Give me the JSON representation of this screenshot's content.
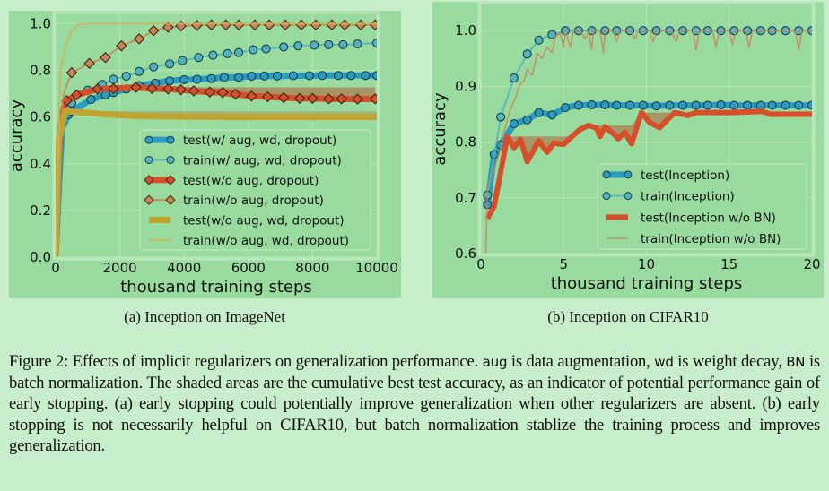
{
  "colors": {
    "page_background": "#c8edca",
    "panel_background": "#99db9f",
    "grid": "#b7e4b7",
    "shade": "#a98a5c"
  },
  "figure": {
    "subcaption_a": "(a) Inception on ImageNet",
    "subcaption_b": "(b) Inception on CIFAR10",
    "caption": {
      "label": "Figure 2:",
      "t1": "Effects of implicit regularizers on generalization performance.",
      "c1": "aug",
      "t2": "is data augmentation,",
      "c2": "wd",
      "t3": "is weight decay,",
      "c3": "BN",
      "t4": "is batch normalization.  The shaded areas are the cumulative best test accuracy, as an indicator of potential performance gain of early stopping.  (a) early stopping could potentially improve generalization when other regularizers are absent. (b) early stopping is not necessarily helpful on CIFAR10, but batch normalization stablize the training process and improves generalization."
    }
  },
  "chart_data": [
    {
      "type": "line",
      "xlabel": "thousand training steps",
      "ylabel": "accuracy",
      "xlim": [
        0,
        10000
      ],
      "ylim": [
        0,
        1.04
      ],
      "xticks": [
        0,
        2000,
        4000,
        6000,
        8000,
        10000
      ],
      "yticks": [
        0.0,
        0.2,
        0.4,
        0.6,
        0.8,
        1.0
      ],
      "grid": true,
      "legend_position": "lower-right",
      "series": [
        {
          "name": "test(w/ aug, wd, dropout)",
          "color": "#2b9bbf",
          "width": 7,
          "marker": "circle",
          "x": [
            0,
            100,
            200,
            400,
            500,
            1100,
            1550,
            1800,
            2200,
            2600,
            3100,
            3550,
            4000,
            4400,
            4850,
            5250,
            5700,
            6100,
            6500,
            6900,
            7400,
            7900,
            8300,
            8800,
            9200,
            9650,
            10000
          ],
          "y": [
            0,
            0.3,
            0.55,
            0.61,
            0.625,
            0.675,
            0.695,
            0.705,
            0.72,
            0.735,
            0.745,
            0.755,
            0.76,
            0.762,
            0.765,
            0.77,
            0.77,
            0.775,
            0.776,
            0.776,
            0.777,
            0.777,
            0.778,
            0.778,
            0.778,
            0.778,
            0.778
          ]
        },
        {
          "name": "train(w/ aug, wd, dropout)",
          "color": "#52b3bf",
          "width": 2,
          "marker": "circle",
          "x": [
            0,
            100,
            250,
            500,
            1000,
            1450,
            1800,
            2200,
            2600,
            3050,
            3550,
            3950,
            4450,
            4900,
            5350,
            5700,
            6150,
            6550,
            7100,
            7550,
            8050,
            8500,
            8950,
            9400,
            10000
          ],
          "y": [
            0,
            0.4,
            0.6,
            0.66,
            0.715,
            0.74,
            0.762,
            0.775,
            0.795,
            0.815,
            0.828,
            0.842,
            0.855,
            0.865,
            0.872,
            0.876,
            0.888,
            0.892,
            0.9,
            0.905,
            0.908,
            0.91,
            0.91,
            0.913,
            0.917
          ]
        },
        {
          "name": "test(w/o aug, dropout)",
          "color": "#d64f2a",
          "width": 7,
          "marker": "diamond",
          "shaded": true,
          "x": [
            0,
            100,
            200,
            350,
            650,
            1300,
            1800,
            2500,
            3000,
            3500,
            3900,
            4300,
            4800,
            5200,
            5600,
            6100,
            6600,
            7100,
            7600,
            8000,
            8500,
            8900,
            9400,
            9950
          ],
          "y": [
            0,
            0.45,
            0.62,
            0.67,
            0.695,
            0.72,
            0.722,
            0.727,
            0.722,
            0.72,
            0.717,
            0.712,
            0.707,
            0.705,
            0.698,
            0.69,
            0.687,
            0.683,
            0.68,
            0.68,
            0.678,
            0.678,
            0.677,
            0.678
          ]
        },
        {
          "name": "train(w/o aug, dropout)",
          "color": "#c98457",
          "width": 2,
          "marker": "diamond",
          "x": [
            0,
            100,
            250,
            500,
            1050,
            1550,
            2050,
            2600,
            3050,
            3500,
            3900,
            4400,
            4850,
            5300,
            5700,
            6200,
            6650,
            7150,
            7650,
            8100,
            8600,
            9000,
            9500,
            9950
          ],
          "y": [
            0,
            0.5,
            0.7,
            0.79,
            0.83,
            0.855,
            0.905,
            0.935,
            0.97,
            0.985,
            0.99,
            0.993,
            0.995,
            0.995,
            0.995,
            0.995,
            0.995,
            0.995,
            0.995,
            0.995,
            0.995,
            0.995,
            0.995,
            0.995
          ]
        },
        {
          "name": "test(w/o aug, wd, dropout)",
          "color": "#bfa42f",
          "width": 7,
          "marker": "none",
          "shaded": true,
          "x": [
            0,
            100,
            300,
            800,
            1500,
            2500,
            4000,
            6000,
            10000
          ],
          "y": [
            0,
            0.5,
            0.625,
            0.62,
            0.612,
            0.605,
            0.602,
            0.6,
            0.6
          ]
        },
        {
          "name": "train(w/o aug, wd, dropout)",
          "color": "#c9b45a",
          "width": 2,
          "marker": "none",
          "x": [
            0,
            150,
            300,
            500,
            700,
            1000,
            10000
          ],
          "y": [
            0,
            0.8,
            0.9,
            0.97,
            0.995,
            1.0,
            1.0
          ]
        }
      ]
    },
    {
      "type": "line",
      "xlabel": "thousand training steps",
      "ylabel": "accuracy",
      "xlim": [
        0,
        20
      ],
      "ylim": [
        0.6,
        1.047
      ],
      "xticks": [
        0,
        5,
        10,
        15,
        20
      ],
      "yticks": [
        0.6,
        0.7,
        0.8,
        0.9,
        1.0
      ],
      "grid": true,
      "legend_position": "lower-right",
      "series": [
        {
          "name": "test(Inception)",
          "color": "#2b9bbf",
          "width": 7,
          "marker": "circle",
          "x": [
            0.4,
            0.8,
            1.2,
            2,
            2.8,
            3.5,
            4.3,
            5.1,
            5.9,
            6.7,
            7.5,
            8.2,
            9,
            9.8,
            10.6,
            11.4,
            12.2,
            13,
            13.7,
            14.5,
            15.3,
            16.1,
            16.9,
            17.6,
            18.4,
            19.2,
            20
          ],
          "y": [
            0.688,
            0.778,
            0.795,
            0.833,
            0.84,
            0.853,
            0.849,
            0.862,
            0.866,
            0.867,
            0.867,
            0.866,
            0.866,
            0.866,
            0.865,
            0.866,
            0.866,
            0.866,
            0.866,
            0.867,
            0.866,
            0.866,
            0.866,
            0.866,
            0.866,
            0.866,
            0.866
          ]
        },
        {
          "name": "train(Inception)",
          "color": "#52b3bf",
          "width": 2,
          "marker": "circle",
          "x": [
            0.4,
            1.2,
            2,
            2.8,
            3.5,
            4.3,
            5.1,
            5.9,
            6.7,
            7.5,
            8.2,
            9,
            9.8,
            10.6,
            11.4,
            12.2,
            13,
            13.7,
            14.5,
            15.3,
            16.1,
            16.9,
            17.6,
            18.4,
            19.2,
            20
          ],
          "y": [
            0.705,
            0.845,
            0.915,
            0.958,
            0.983,
            0.993,
            1,
            1,
            1,
            1,
            1,
            1,
            1,
            1,
            1,
            1,
            1,
            1,
            1,
            1,
            1,
            1,
            1,
            1,
            1,
            1
          ]
        },
        {
          "name": "test(Inception w/o BN)",
          "color": "#d64f2a",
          "width": 6,
          "marker": "none",
          "shaded": true,
          "x": [
            0.4,
            0.8,
            1.6,
            2,
            2.4,
            2.8,
            3.5,
            4,
            4.4,
            5,
            5.5,
            6,
            6.5,
            7,
            7.2,
            7.5,
            8,
            8.3,
            8.7,
            9.1,
            9.7,
            10.2,
            10.8,
            11.7,
            12.5,
            13,
            15,
            17,
            17.5,
            20
          ],
          "y": [
            0.663,
            0.685,
            0.81,
            0.79,
            0.805,
            0.765,
            0.802,
            0.782,
            0.798,
            0.796,
            0.81,
            0.823,
            0.83,
            0.825,
            0.81,
            0.828,
            0.815,
            0.806,
            0.818,
            0.797,
            0.853,
            0.835,
            0.826,
            0.853,
            0.848,
            0.853,
            0.853,
            0.855,
            0.85,
            0.85
          ]
        },
        {
          "name": "train(Inception w/o BN)",
          "color": "#c98457",
          "width": 1.5,
          "marker": "none",
          "x": [
            0.3,
            0.4,
            0.8,
            1.2,
            1.5,
            1.8,
            2.1,
            2.3,
            2.6,
            2.8,
            3.1,
            3.4,
            3.7,
            4,
            4.3,
            4.5,
            4.8,
            5,
            5.1,
            5.4,
            5.6,
            6,
            6.3,
            6.5,
            6.7,
            6.8,
            7.2,
            7.4,
            7.5,
            8,
            8.2,
            8.4,
            9,
            9.3,
            9.5,
            10.2,
            10.4,
            10.6,
            11.5,
            11.8,
            12,
            12.8,
            13,
            13.2,
            14,
            14.2,
            14.4,
            15,
            15.2,
            15.4,
            16,
            16.2,
            16.4,
            19,
            19.2,
            19.4,
            20
          ],
          "y": [
            0.6,
            0.72,
            0.75,
            0.79,
            0.83,
            0.86,
            0.88,
            0.9,
            0.91,
            0.93,
            0.92,
            0.96,
            0.95,
            0.97,
            0.96,
            0.99,
            0.995,
            0.97,
            1,
            0.97,
            1,
            1,
            0.985,
            1,
            0.965,
            1,
            1,
            0.96,
            1,
            1,
            0.98,
            1,
            1,
            0.985,
            1,
            1,
            0.98,
            1,
            1,
            0.98,
            1,
            1,
            0.965,
            1,
            1,
            0.97,
            1,
            1,
            0.975,
            1,
            1,
            0.97,
            1,
            1,
            0.965,
            1,
            1
          ]
        }
      ]
    }
  ]
}
